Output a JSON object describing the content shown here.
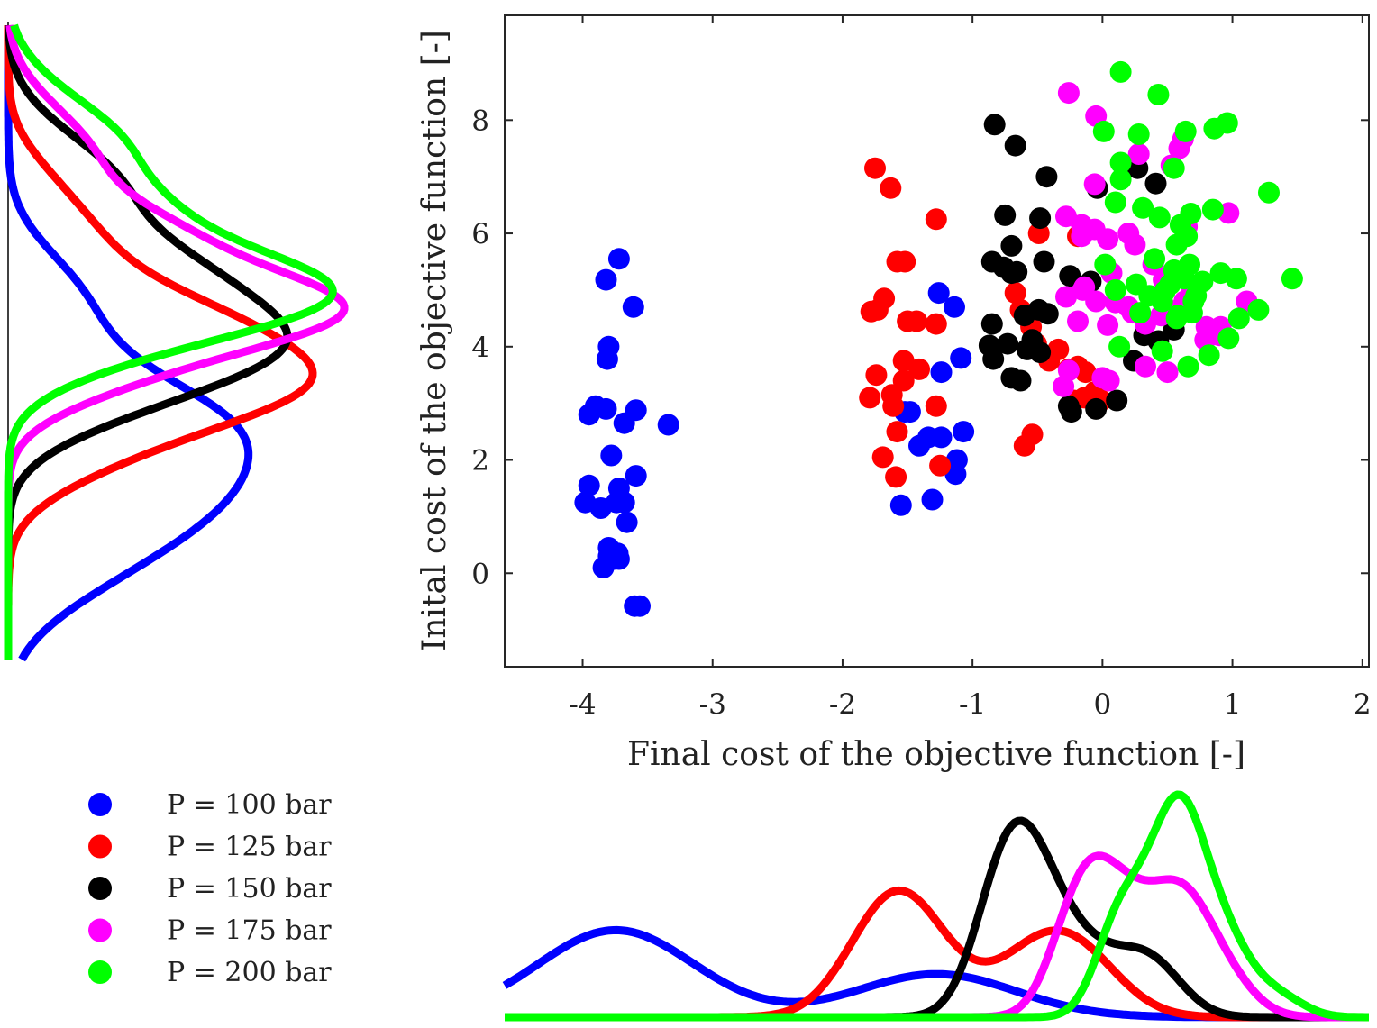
{
  "chart_data": [
    {
      "type": "scatter",
      "xlabel": "Final cost of the objective function [-]",
      "ylabel": "Inital cost of the objective function [-]",
      "xlim": [
        -4.6,
        2.05
      ],
      "ylim": [
        -1.65,
        9.85
      ],
      "x_ticks": [
        "-4",
        "-3",
        "-2",
        "-1",
        "0",
        "1",
        "2"
      ],
      "y_ticks": [
        "0",
        "2",
        "4",
        "6",
        "8"
      ],
      "grid": false,
      "series": [
        {
          "name": "P = 100 bar",
          "color": "#0000ff",
          "x": [
            -3.72,
            -3.61,
            -3.82,
            -3.8,
            -3.81,
            -3.9,
            -3.82,
            -3.68,
            -3.59,
            -3.34,
            -3.95,
            -3.78,
            -3.72,
            -3.68,
            -3.59,
            -3.95,
            -3.98,
            -3.86,
            -3.74,
            -3.66,
            -3.73,
            -3.72,
            -3.8,
            -3.84,
            -3.8,
            -3.76,
            -3.6,
            -3.56,
            -1.26,
            -1.14,
            -1.24,
            -1.09,
            -1.52,
            -1.48,
            -1.41,
            -1.34,
            -1.24,
            -1.07,
            -1.12,
            -1.13,
            -1.55,
            -1.31
          ],
          "y": [
            5.55,
            4.7,
            5.18,
            4.0,
            3.78,
            2.95,
            2.9,
            2.65,
            2.88,
            2.62,
            2.8,
            2.08,
            1.5,
            1.25,
            1.72,
            1.55,
            1.25,
            1.15,
            1.25,
            0.9,
            0.35,
            0.25,
            0.45,
            0.1,
            0.3,
            0.25,
            -0.58,
            -0.58,
            4.95,
            4.7,
            3.55,
            3.8,
            2.85,
            2.85,
            2.25,
            2.4,
            2.4,
            2.5,
            2.0,
            1.75,
            1.2,
            1.3
          ]
        },
        {
          "name": "P = 125 bar",
          "color": "#ff0000",
          "x": [
            -1.75,
            -1.63,
            -1.28,
            -1.58,
            -1.52,
            -1.68,
            -1.73,
            -1.78,
            -1.5,
            -1.43,
            -1.28,
            -1.53,
            -1.41,
            -1.74,
            -1.62,
            -1.53,
            -1.79,
            -1.61,
            -1.28,
            -1.58,
            -1.69,
            -1.59,
            -1.25,
            -0.49,
            -0.19,
            -0.67,
            -0.63,
            -0.55,
            -0.51,
            -0.34,
            -0.41,
            -0.26,
            -0.19,
            -0.13,
            -0.06,
            -0.01,
            -0.14,
            -0.22,
            -0.54,
            -0.6
          ],
          "y": [
            7.15,
            6.8,
            6.25,
            5.5,
            5.5,
            4.85,
            4.65,
            4.62,
            4.45,
            4.45,
            4.4,
            3.75,
            3.6,
            3.5,
            3.15,
            3.4,
            3.1,
            2.95,
            2.95,
            2.5,
            2.05,
            1.7,
            1.9,
            6.0,
            5.95,
            4.95,
            4.65,
            4.35,
            4.05,
            3.95,
            3.75,
            3.6,
            3.65,
            3.55,
            3.2,
            3.05,
            3.1,
            3.05,
            2.45,
            2.25
          ]
        },
        {
          "name": "P = 150 bar",
          "color": "#000000",
          "x": [
            -0.83,
            -0.67,
            -0.43,
            0.27,
            0.41,
            -0.04,
            -0.75,
            -0.48,
            -0.7,
            -0.85,
            -0.7,
            -0.76,
            -0.66,
            -0.45,
            -0.25,
            -0.09,
            -0.49,
            -0.85,
            -0.6,
            -0.42,
            -0.87,
            -0.73,
            -0.54,
            -0.48,
            0.32,
            0.24,
            0.55,
            0.43,
            -0.58,
            -0.84,
            -0.7,
            -0.63,
            -0.26,
            -0.05,
            0.11,
            -0.24
          ],
          "y": [
            7.92,
            7.55,
            7.0,
            7.15,
            6.88,
            6.8,
            6.32,
            6.27,
            5.78,
            5.5,
            5.3,
            5.4,
            5.32,
            5.5,
            5.25,
            5.15,
            4.65,
            4.4,
            4.55,
            4.58,
            4.02,
            4.05,
            4.12,
            3.9,
            4.2,
            3.75,
            4.3,
            4.1,
            3.95,
            3.78,
            3.45,
            3.4,
            2.95,
            2.9,
            3.05,
            2.85
          ]
        },
        {
          "name": "P = 175 bar",
          "color": "#ff00ff",
          "x": [
            -0.26,
            -0.05,
            0.62,
            0.28,
            0.59,
            0.53,
            -0.06,
            0.97,
            0.65,
            -0.16,
            0.2,
            -0.28,
            -0.06,
            -0.16,
            0.04,
            0.25,
            0.39,
            0.07,
            0.47,
            -0.15,
            0.69,
            -0.14,
            -0.28,
            -0.05,
            0.1,
            0.2,
            0.23,
            -0.19,
            0.04,
            0.33,
            0.45,
            0.63,
            0.58,
            0.68,
            0.68,
            0.91,
            0.8,
            0.9,
            1.11,
            0.79,
            -0.26,
            0.33,
            0.5,
            0.05,
            0.0,
            -0.3
          ],
          "y": [
            8.48,
            8.07,
            7.67,
            7.4,
            7.5,
            7.2,
            6.87,
            6.36,
            6.12,
            6.15,
            6.0,
            6.3,
            6.07,
            5.95,
            5.9,
            5.8,
            5.45,
            5.3,
            5.18,
            5.0,
            4.98,
            5.05,
            4.88,
            4.8,
            4.78,
            4.7,
            4.6,
            4.45,
            4.38,
            4.4,
            4.55,
            4.8,
            4.65,
            4.85,
            4.7,
            4.35,
            4.35,
            4.2,
            4.8,
            4.12,
            3.58,
            3.65,
            3.55,
            3.4,
            3.45,
            3.3
          ]
        },
        {
          "name": "P = 200 bar",
          "color": "#00ff00",
          "x": [
            0.14,
            0.43,
            0.28,
            0.01,
            0.64,
            0.96,
            0.86,
            0.55,
            0.14,
            0.14,
            0.31,
            0.44,
            0.6,
            0.68,
            0.85,
            1.28,
            0.1,
            0.57,
            0.65,
            0.4,
            0.55,
            0.52,
            0.67,
            0.63,
            0.77,
            0.72,
            0.91,
            1.03,
            1.46,
            0.02,
            0.1,
            0.26,
            0.48,
            0.36,
            0.46,
            0.58,
            0.7,
            1.05,
            1.2,
            0.69,
            0.57,
            0.29,
            0.13,
            0.46,
            0.97,
            0.82,
            0.66
          ],
          "y": [
            8.85,
            8.45,
            7.75,
            7.8,
            7.8,
            7.95,
            7.85,
            7.15,
            7.25,
            6.95,
            6.45,
            6.28,
            6.15,
            6.35,
            6.42,
            6.72,
            6.55,
            5.8,
            5.95,
            5.55,
            5.35,
            5.1,
            5.45,
            5.2,
            5.15,
            4.9,
            5.3,
            5.2,
            5.2,
            5.45,
            5.0,
            5.1,
            4.98,
            4.9,
            4.8,
            4.55,
            4.8,
            4.5,
            4.65,
            4.6,
            4.5,
            4.6,
            4.0,
            3.92,
            4.15,
            3.85,
            3.65
          ]
        }
      ]
    },
    {
      "type": "line",
      "xlim": [
        -4.6,
        2.05
      ],
      "ylim": [
        0,
        1
      ]
    },
    {
      "type": "line",
      "xlim": [
        -1.65,
        9.85
      ],
      "ylim": [
        0,
        1
      ]
    }
  ],
  "legend": {
    "placement": "bottom-left",
    "items": [
      "P = 100 bar",
      "P = 125 bar",
      "P = 150 bar",
      "P = 175 bar",
      "P = 200 bar"
    ]
  }
}
